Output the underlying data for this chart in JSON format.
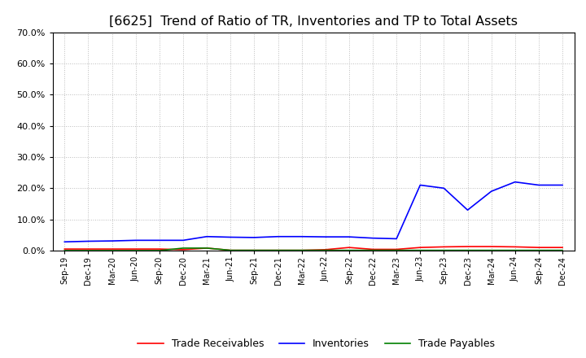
{
  "title": "[6625]  Trend of Ratio of TR, Inventories and TP to Total Assets",
  "x_labels": [
    "Sep-19",
    "Dec-19",
    "Mar-20",
    "Jun-20",
    "Sep-20",
    "Dec-20",
    "Mar-21",
    "Jun-21",
    "Sep-21",
    "Dec-21",
    "Mar-22",
    "Jun-22",
    "Sep-22",
    "Dec-22",
    "Mar-23",
    "Jun-23",
    "Sep-23",
    "Dec-23",
    "Mar-24",
    "Jun-24",
    "Sep-24",
    "Dec-24"
  ],
  "trade_receivables": [
    0.005,
    0.005,
    0.005,
    0.005,
    0.005,
    0.003,
    0.008,
    0.001,
    0.001,
    0.001,
    0.001,
    0.003,
    0.01,
    0.004,
    0.004,
    0.01,
    0.012,
    0.013,
    0.013,
    0.012,
    0.01,
    0.01
  ],
  "inventories": [
    0.028,
    0.03,
    0.031,
    0.033,
    0.033,
    0.033,
    0.045,
    0.043,
    0.042,
    0.045,
    0.045,
    0.044,
    0.044,
    0.04,
    0.038,
    0.21,
    0.2,
    0.13,
    0.19,
    0.22,
    0.21,
    0.21
  ],
  "trade_payables": [
    0.0,
    0.0,
    0.0,
    0.0,
    0.0,
    0.008,
    0.008,
    0.001,
    0.001,
    0.001,
    0.001,
    0.001,
    0.001,
    0.001,
    0.001,
    0.001,
    0.001,
    0.001,
    0.001,
    0.001,
    0.001,
    0.001
  ],
  "tr_color": "#ff0000",
  "inv_color": "#0000ff",
  "tp_color": "#008000",
  "ylim": [
    0.0,
    0.7
  ],
  "yticks": [
    0.0,
    0.1,
    0.2,
    0.3,
    0.4,
    0.5,
    0.6,
    0.7
  ],
  "background_color": "#ffffff",
  "grid_color": "#bbbbbb",
  "title_fontsize": 11.5,
  "legend_labels": [
    "Trade Receivables",
    "Inventories",
    "Trade Payables"
  ]
}
